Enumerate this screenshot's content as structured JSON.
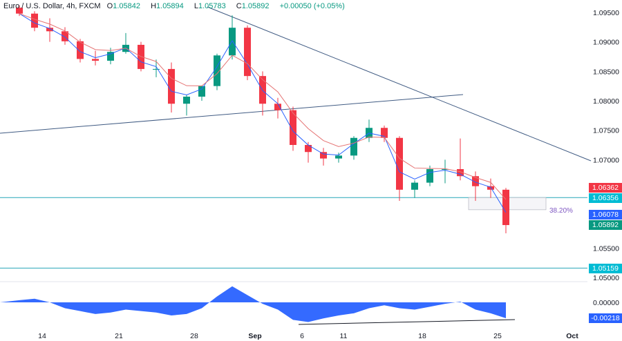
{
  "header": {
    "symbol": "Euro / U.S. Dollar, 4h, FXCM",
    "open_label": "O",
    "open": "1.05842",
    "high_label": "H",
    "high": "1.05894",
    "low_label": "L",
    "low": "1.05783",
    "close_label": "C",
    "close": "1.05892",
    "change": "+0.00050 (+0.05%)"
  },
  "price_tags": [
    {
      "value": "1.06362",
      "color": "#f23645"
    },
    {
      "value": "1.06356",
      "color": "#00bcd4"
    },
    {
      "value": "1.06078",
      "color": "#2962ff"
    },
    {
      "value": "1.05892",
      "color": "#089981"
    },
    {
      "value": "1.05159",
      "color": "#00bcd4"
    }
  ],
  "oscillator_tag": {
    "value": "-0.00218",
    "color": "#2962ff"
  },
  "fib_label": "38.20%",
  "colors": {
    "up": "#089981",
    "down": "#f23645",
    "fast_ma": "#2962ff",
    "slow_ma": "#e57373",
    "trendline": "#3f5a82",
    "level": "#26a6b8",
    "oscillator": "#2962ff"
  },
  "chart_data": {
    "type": "candlestick",
    "symbol": "EURUSD 4h",
    "y_ticks": [
      "1.09500",
      "1.09000",
      "1.08500",
      "1.08000",
      "1.07500",
      "1.07000",
      "1.05500",
      "1.05000"
    ],
    "ylim": [
      1.05,
      1.095
    ],
    "x_ticks": [
      {
        "label": "14",
        "date": "Aug 14"
      },
      {
        "label": "21",
        "date": "Aug 21"
      },
      {
        "label": "28",
        "date": "Aug 28"
      },
      {
        "label": "Sep",
        "date": "Sep 1"
      },
      {
        "label": "6",
        "date": "Sep 6"
      },
      {
        "label": "11",
        "date": "Sep 11"
      },
      {
        "label": "18",
        "date": "Sep 18"
      },
      {
        "label": "25",
        "date": "Sep 25"
      },
      {
        "label": "Oct",
        "date": "Oct 2"
      }
    ],
    "dates": [
      "Aug 10",
      "Aug 11",
      "Aug 14",
      "Aug 15",
      "Aug 16",
      "Aug 17",
      "Aug 18",
      "Aug 21",
      "Aug 22",
      "Aug 23",
      "Aug 24",
      "Aug 25",
      "Aug 28",
      "Aug 29",
      "Aug 30",
      "Aug 31",
      "Sep 1",
      "Sep 4",
      "Sep 5",
      "Sep 6",
      "Sep 7",
      "Sep 8",
      "Sep 11",
      "Sep 12",
      "Sep 13",
      "Sep 14",
      "Sep 15",
      "Sep 18",
      "Sep 19",
      "Sep 20",
      "Sep 21",
      "Sep 22",
      "Sep 25"
    ],
    "open": [
      1.0958,
      1.0948,
      1.0924,
      1.0918,
      1.0901,
      1.0871,
      1.0868,
      1.0883,
      1.0895,
      1.0854,
      1.0854,
      1.0795,
      1.0807,
      1.0825,
      1.0877,
      1.0924,
      1.0842,
      1.0795,
      1.0784,
      1.0725,
      1.0713,
      1.0702,
      1.0707,
      1.0737,
      1.0754,
      1.0737,
      1.0649,
      1.0661,
      1.0684,
      1.0684,
      1.0672,
      1.0655,
      1.0649
    ],
    "high": [
      1.0962,
      1.0952,
      1.094,
      1.0925,
      1.0905,
      1.0885,
      1.089,
      1.0915,
      1.09,
      1.087,
      1.0865,
      1.081,
      1.0825,
      1.088,
      1.0945,
      1.0928,
      1.085,
      1.0805,
      1.079,
      1.073,
      1.072,
      1.0712,
      1.074,
      1.0768,
      1.0758,
      1.074,
      1.0665,
      1.069,
      1.07,
      1.0736,
      1.068,
      1.0668,
      1.0652
    ],
    "low": [
      1.0944,
      1.0918,
      1.09,
      1.0895,
      1.0865,
      1.086,
      1.0862,
      1.088,
      1.085,
      1.084,
      1.078,
      1.0775,
      1.08,
      1.0818,
      1.087,
      1.0835,
      1.0775,
      1.077,
      1.0715,
      1.0695,
      1.069,
      1.0695,
      1.07,
      1.073,
      1.073,
      1.063,
      1.0635,
      1.0655,
      1.066,
      1.0665,
      1.063,
      1.0635,
      1.0575
    ],
    "close": [
      1.0948,
      1.0924,
      1.0918,
      1.0901,
      1.0871,
      1.0868,
      1.0883,
      1.0895,
      1.0854,
      1.0854,
      1.0795,
      1.0807,
      1.0825,
      1.0877,
      1.0924,
      1.0842,
      1.0795,
      1.0784,
      1.0725,
      1.0713,
      1.0702,
      1.0707,
      1.0737,
      1.0754,
      1.0737,
      1.0649,
      1.0661,
      1.0684,
      1.0684,
      1.0672,
      1.0655,
      1.0649,
      1.0589
    ],
    "levels": [
      1.06356,
      1.05159
    ],
    "fib_zone": [
      1.06356,
      1.0615
    ],
    "oscillator": {
      "y_ticks": [
        "0.00000"
      ],
      "values": [
        0.0003,
        0.0005,
        0.0,
        -0.0008,
        -0.0012,
        -0.0016,
        -0.0014,
        -0.001,
        -0.0012,
        -0.0014,
        -0.0018,
        -0.0016,
        -0.0008,
        0.0008,
        0.0022,
        0.001,
        -0.0002,
        -0.001,
        -0.0024,
        -0.0027,
        -0.0022,
        -0.0018,
        -0.0015,
        -0.0008,
        -0.0004,
        -0.0008,
        -0.001,
        -0.0006,
        -0.0002,
        0.0001,
        -0.001,
        -0.0015,
        -0.00218
      ]
    }
  }
}
